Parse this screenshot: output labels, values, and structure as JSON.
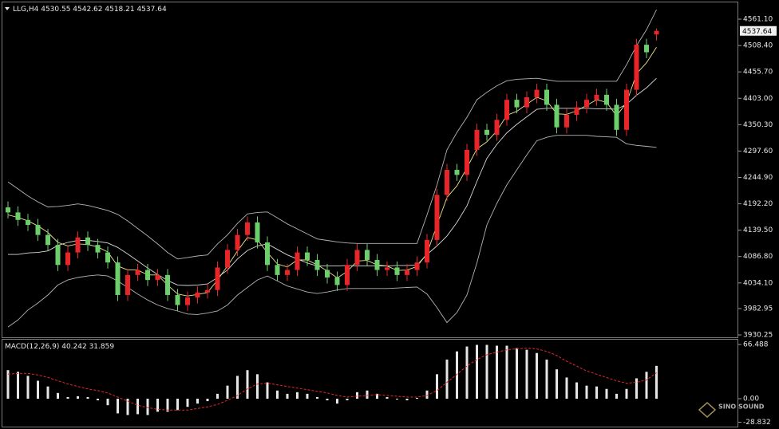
{
  "chart_data": [
    {
      "type": "candlestick",
      "title": "LLG,H4  4530.55 4542.62 4518.21 4537.64",
      "ylim": [
        3925.5,
        4593.0
      ],
      "yticks": [
        {
          "value": 4561.1,
          "label": "4561.10"
        },
        {
          "value": 4508.4,
          "label": "4508.40"
        },
        {
          "value": 4455.7,
          "label": "4455.70"
        },
        {
          "value": 4403.0,
          "label": "4403.00"
        },
        {
          "value": 4350.3,
          "label": "4350.30"
        },
        {
          "value": 4297.6,
          "label": "4297.60"
        },
        {
          "value": 4244.9,
          "label": "4244.90"
        },
        {
          "value": 4192.2,
          "label": "4192.20"
        },
        {
          "value": 4139.5,
          "label": "4139.50"
        },
        {
          "value": 4086.8,
          "label": "4086.80"
        },
        {
          "value": 4034.1,
          "label": "4034.10"
        },
        3982.95,
        3930.25
      ],
      "grid": false,
      "up_color": "#e8262a",
      "down_color": "#6ccf6c",
      "current_price": 4537.64,
      "open": [
        4185,
        4175,
        4160,
        4150,
        4130,
        4110,
        4070,
        4095,
        4125,
        4110,
        4095,
        4075,
        4010,
        4050,
        4060,
        4040,
        4050,
        4010,
        3990,
        4005,
        4015,
        4020,
        4065,
        4100,
        4130,
        4155,
        4115,
        4070,
        4050,
        4060,
        4095,
        4080,
        4060,
        4045,
        4030,
        4070,
        4100,
        4080,
        4060,
        4065,
        4050,
        4060,
        4075,
        4120,
        4210,
        4260,
        4250,
        4300,
        4340,
        4330,
        4360,
        4400,
        4385,
        4405,
        4420,
        4390,
        4345,
        4370,
        4385,
        4400,
        4410,
        4390,
        4340,
        4420,
        4510,
        4530.55
      ],
      "high": [
        4197,
        4187,
        4172,
        4162,
        4142,
        4122,
        4107,
        4137,
        4137,
        4122,
        4107,
        4087,
        4062,
        4072,
        4072,
        4062,
        4062,
        4022,
        4017,
        4027,
        4032,
        4077,
        4112,
        4142,
        4167,
        4167,
        4127,
        4082,
        4072,
        4107,
        4107,
        4092,
        4072,
        4057,
        4082,
        4112,
        4112,
        4092,
        4077,
        4077,
        4072,
        4087,
        4132,
        4222,
        4272,
        4272,
        4312,
        4352,
        4352,
        4372,
        4412,
        4412,
        4417,
        4432,
        4432,
        4402,
        4382,
        4397,
        4412,
        4422,
        4422,
        4402,
        4432,
        4522,
        4522,
        4542.62
      ],
      "low": [
        4163,
        4148,
        4138,
        4118,
        4098,
        4058,
        4058,
        4083,
        4098,
        4083,
        4063,
        3998,
        3998,
        4038,
        4028,
        4028,
        3998,
        3978,
        3978,
        3993,
        4003,
        4008,
        4053,
        4088,
        4118,
        4103,
        4058,
        4038,
        4038,
        4048,
        4068,
        4048,
        4033,
        4018,
        4018,
        4058,
        4068,
        4048,
        4048,
        4038,
        4038,
        4048,
        4063,
        4108,
        4198,
        4238,
        4238,
        4288,
        4318,
        4318,
        4348,
        4373,
        4373,
        4393,
        4378,
        4333,
        4333,
        4358,
        4373,
        4388,
        4378,
        4328,
        4328,
        4408,
        4483,
        4518.21
      ],
      "close": [
        4175,
        4160,
        4150,
        4130,
        4110,
        4070,
        4095,
        4125,
        4110,
        4095,
        4075,
        4010,
        4050,
        4060,
        4040,
        4050,
        4010,
        3990,
        4005,
        4015,
        4020,
        4065,
        4100,
        4130,
        4155,
        4115,
        4070,
        4050,
        4060,
        4095,
        4080,
        4060,
        4045,
        4030,
        4070,
        4100,
        4080,
        4060,
        4065,
        4050,
        4060,
        4075,
        4120,
        4210,
        4260,
        4250,
        4300,
        4340,
        4330,
        4360,
        4400,
        4385,
        4405,
        4420,
        4390,
        4345,
        4370,
        4385,
        4400,
        4410,
        4390,
        4340,
        4420,
        4510,
        4495,
        4537.64
      ],
      "overlays": [
        {
          "color": "#b4b4b4",
          "values": [
            4236,
            4222,
            4208,
            4196,
            4186,
            4187,
            4189,
            4192,
            4189,
            4184,
            4179,
            4171,
            4158,
            4143,
            4128,
            4112,
            4095,
            4082,
            4085,
            4088,
            4090,
            4112,
            4130,
            4153,
            4172,
            4175,
            4176,
            4164,
            4152,
            4142,
            4132,
            4122,
            4119,
            4116,
            4114,
            4113,
            4113,
            4113,
            4113,
            4113,
            4113,
            4113,
            4170,
            4230,
            4300,
            4335,
            4365,
            4400,
            4415,
            4428,
            4438,
            4441,
            4442,
            4443,
            4440,
            4437,
            4437,
            4437,
            4437,
            4437,
            4437,
            4437,
            4470,
            4508,
            4540,
            4580
          ]
        },
        {
          "color": "#d8d8d8",
          "values": [
            4091,
            4091,
            4094,
            4095,
            4098,
            4109,
            4115,
            4119,
            4119,
            4117,
            4114,
            4105,
            4092,
            4078,
            4064,
            4051,
            4039,
            4030,
            4029,
            4030,
            4032,
            4045,
            4060,
            4082,
            4099,
            4108,
            4112,
            4101,
            4090,
            4082,
            4074,
            4068,
            4068,
            4068,
            4069,
            4068,
            4068,
            4068,
            4068,
            4069,
            4069,
            4070,
            4091,
            4108,
            4128,
            4155,
            4188,
            4237,
            4283,
            4311,
            4334,
            4351,
            4366,
            4381,
            4383,
            4383,
            4383,
            4383,
            4383,
            4382,
            4382,
            4381,
            4391,
            4409,
            4424,
            4443
          ]
        },
        {
          "color": "#b4b4b4",
          "values": [
            3946,
            3960,
            3980,
            3994,
            4010,
            4030,
            4040,
            4045,
            4048,
            4050,
            4048,
            4038,
            4025,
            4012,
            4000,
            3990,
            3983,
            3978,
            3972,
            3971,
            3974,
            3978,
            3990,
            4010,
            4025,
            4040,
            4048,
            4038,
            4028,
            4022,
            4016,
            4013,
            4016,
            4020,
            4023,
            4023,
            4023,
            4023,
            4023,
            4024,
            4025,
            4026,
            4012,
            3985,
            3955,
            3975,
            4010,
            4074,
            4150,
            4193,
            4230,
            4260,
            4290,
            4318,
            4325,
            4329,
            4329,
            4329,
            4329,
            4327,
            4326,
            4325,
            4312,
            4309,
            4307,
            4305
          ]
        },
        {
          "color": "#ece58a",
          "values": [
            4170,
            4165,
            4158,
            4148,
            4135,
            4115,
            4108,
            4112,
            4111,
            4106,
            4096,
            4068,
            4060,
            4060,
            4050,
            4050,
            4030,
            4012,
            4008,
            4011,
            4015,
            4040,
            4068,
            4098,
            4125,
            4120,
            4095,
            4072,
            4066,
            4080,
            4080,
            4070,
            4058,
            4044,
            4057,
            4078,
            4079,
            4070,
            4068,
            4059,
            4060,
            4067,
            4093,
            4150,
            4205,
            4228,
            4264,
            4302,
            4316,
            4338,
            4369,
            4377,
            4391,
            4405,
            4398,
            4372,
            4371,
            4378,
            4389,
            4400,
            4395,
            4368,
            4394,
            4452,
            4474,
            4505
          ]
        }
      ],
      "watermark": "SINO SOUND"
    },
    {
      "type": "macd",
      "title": "MACD(12,26,9) 40.242 31.859",
      "ylim": [
        -32.27,
        71.38
      ],
      "yticks": [
        66.488,
        {
          "value": 0,
          "label": "0.00"
        },
        -28.832
      ],
      "histogram_color": "#e6e6e6",
      "signal_color": "#e8262a",
      "values": [
        35,
        33,
        28,
        22,
        15,
        7,
        2,
        3,
        2,
        -2,
        -8,
        -18,
        -20,
        -19,
        -20,
        -16,
        -16,
        -14,
        -10,
        -6,
        -3,
        6,
        16,
        28,
        35,
        30,
        20,
        10,
        6,
        8,
        6,
        2,
        -2,
        -6,
        -2,
        8,
        10,
        6,
        2,
        -1,
        -2,
        1,
        10,
        30,
        48,
        58,
        64,
        66,
        66,
        65,
        65,
        62,
        60,
        56,
        48,
        36,
        26,
        20,
        16,
        15,
        12,
        6,
        12,
        25,
        33,
        40.242
      ],
      "signal": [
        30,
        31,
        31,
        29,
        26,
        22,
        18,
        15,
        12,
        10,
        7,
        2,
        -3,
        -8,
        -11,
        -13,
        -14,
        -14,
        -14,
        -12,
        -10,
        -7,
        -2,
        4,
        12,
        18,
        19,
        17,
        15,
        13,
        11,
        9,
        7,
        4,
        2,
        3,
        4,
        5,
        4,
        3,
        2,
        2,
        4,
        10,
        20,
        30,
        40,
        48,
        54,
        57,
        60,
        61,
        62,
        61,
        58,
        53,
        46,
        40,
        34,
        30,
        26,
        22,
        19,
        20,
        23,
        31.859
      ]
    }
  ]
}
